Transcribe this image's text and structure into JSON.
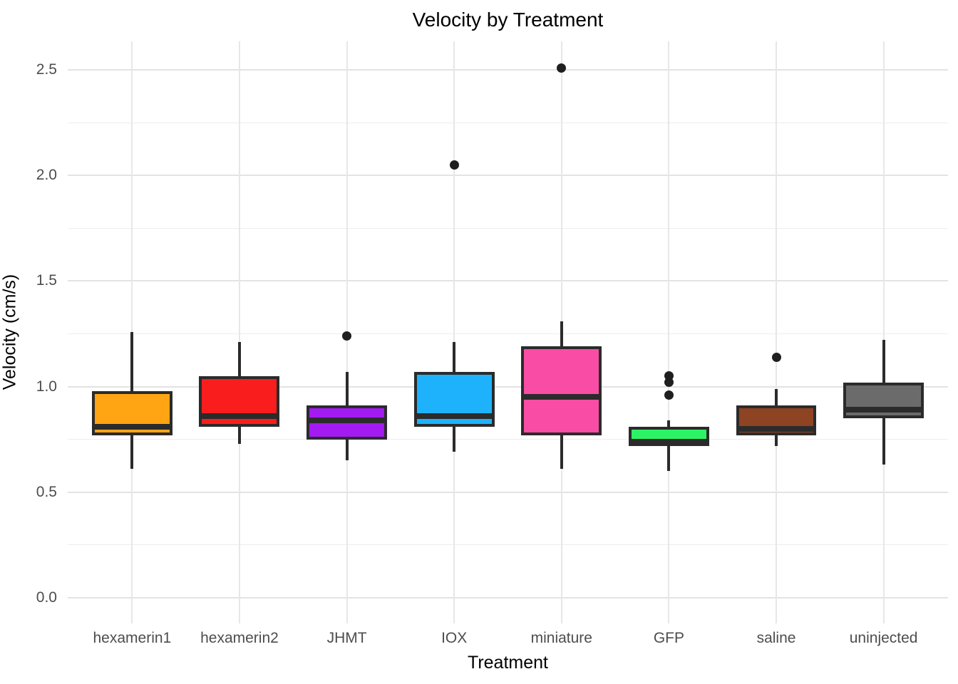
{
  "title": "Velocity by Treatment",
  "x_axis": {
    "label": "Treatment"
  },
  "y_axis": {
    "label": "Velocity (cm/s)"
  },
  "palette": {
    "box_border": "#2b2b2b",
    "median": "#2b2b2b",
    "outlier_point": "#1f1f1f",
    "grid_major": "#e3e3e3",
    "grid_minor": "#ededed",
    "tick_text": "#4d4d4d",
    "title_text": "#000000"
  },
  "chart_data": {
    "type": "boxplot",
    "title": "Velocity by Treatment",
    "xlabel": "Treatment",
    "ylabel": "Velocity (cm/s)",
    "ylim": [
      -0.11,
      2.64
    ],
    "grid": true,
    "legend": false,
    "y_major_ticks": [
      0.0,
      0.5,
      1.0,
      1.5,
      2.0,
      2.5
    ],
    "y_minor_ticks": [
      0.25,
      0.75,
      1.25,
      1.75,
      2.25
    ],
    "categories": [
      "hexamerin1",
      "hexamerin2",
      "JHMT",
      "IOX",
      "miniature",
      "GFP",
      "saline",
      "uninjected"
    ],
    "series": [
      {
        "category": "hexamerin1",
        "color": "#ffa513",
        "whisker_low": 0.61,
        "q1": 0.77,
        "median": 0.81,
        "q3": 0.98,
        "whisker_high": 1.26,
        "outliers": []
      },
      {
        "category": "hexamerin2",
        "color": "#fa1d1d",
        "whisker_low": 0.73,
        "q1": 0.81,
        "median": 0.86,
        "q3": 1.05,
        "whisker_high": 1.21,
        "outliers": []
      },
      {
        "category": "JHMT",
        "color": "#a31bf2",
        "whisker_low": 0.65,
        "q1": 0.75,
        "median": 0.84,
        "q3": 0.91,
        "whisker_high": 1.07,
        "outliers": [
          1.24
        ]
      },
      {
        "category": "IOX",
        "color": "#1fb2fc",
        "whisker_low": 0.69,
        "q1": 0.81,
        "median": 0.86,
        "q3": 1.07,
        "whisker_high": 1.21,
        "outliers": [
          2.05
        ]
      },
      {
        "category": "miniature",
        "color": "#f94da5",
        "whisker_low": 0.61,
        "q1": 0.77,
        "median": 0.95,
        "q3": 1.19,
        "whisker_high": 1.31,
        "outliers": [
          2.51
        ]
      },
      {
        "category": "GFP",
        "color": "#2cf366",
        "whisker_low": 0.6,
        "q1": 0.72,
        "median": 0.74,
        "q3": 0.81,
        "whisker_high": 0.84,
        "outliers": [
          1.05,
          1.02,
          0.96
        ]
      },
      {
        "category": "saline",
        "color": "#8e4323",
        "whisker_low": 0.72,
        "q1": 0.77,
        "median": 0.8,
        "q3": 0.91,
        "whisker_high": 0.99,
        "outliers": [
          1.14
        ]
      },
      {
        "category": "uninjected",
        "color": "#6b6b6b",
        "whisker_low": 0.63,
        "q1": 0.85,
        "median": 0.89,
        "q3": 1.02,
        "whisker_high": 1.22,
        "outliers": []
      }
    ]
  }
}
